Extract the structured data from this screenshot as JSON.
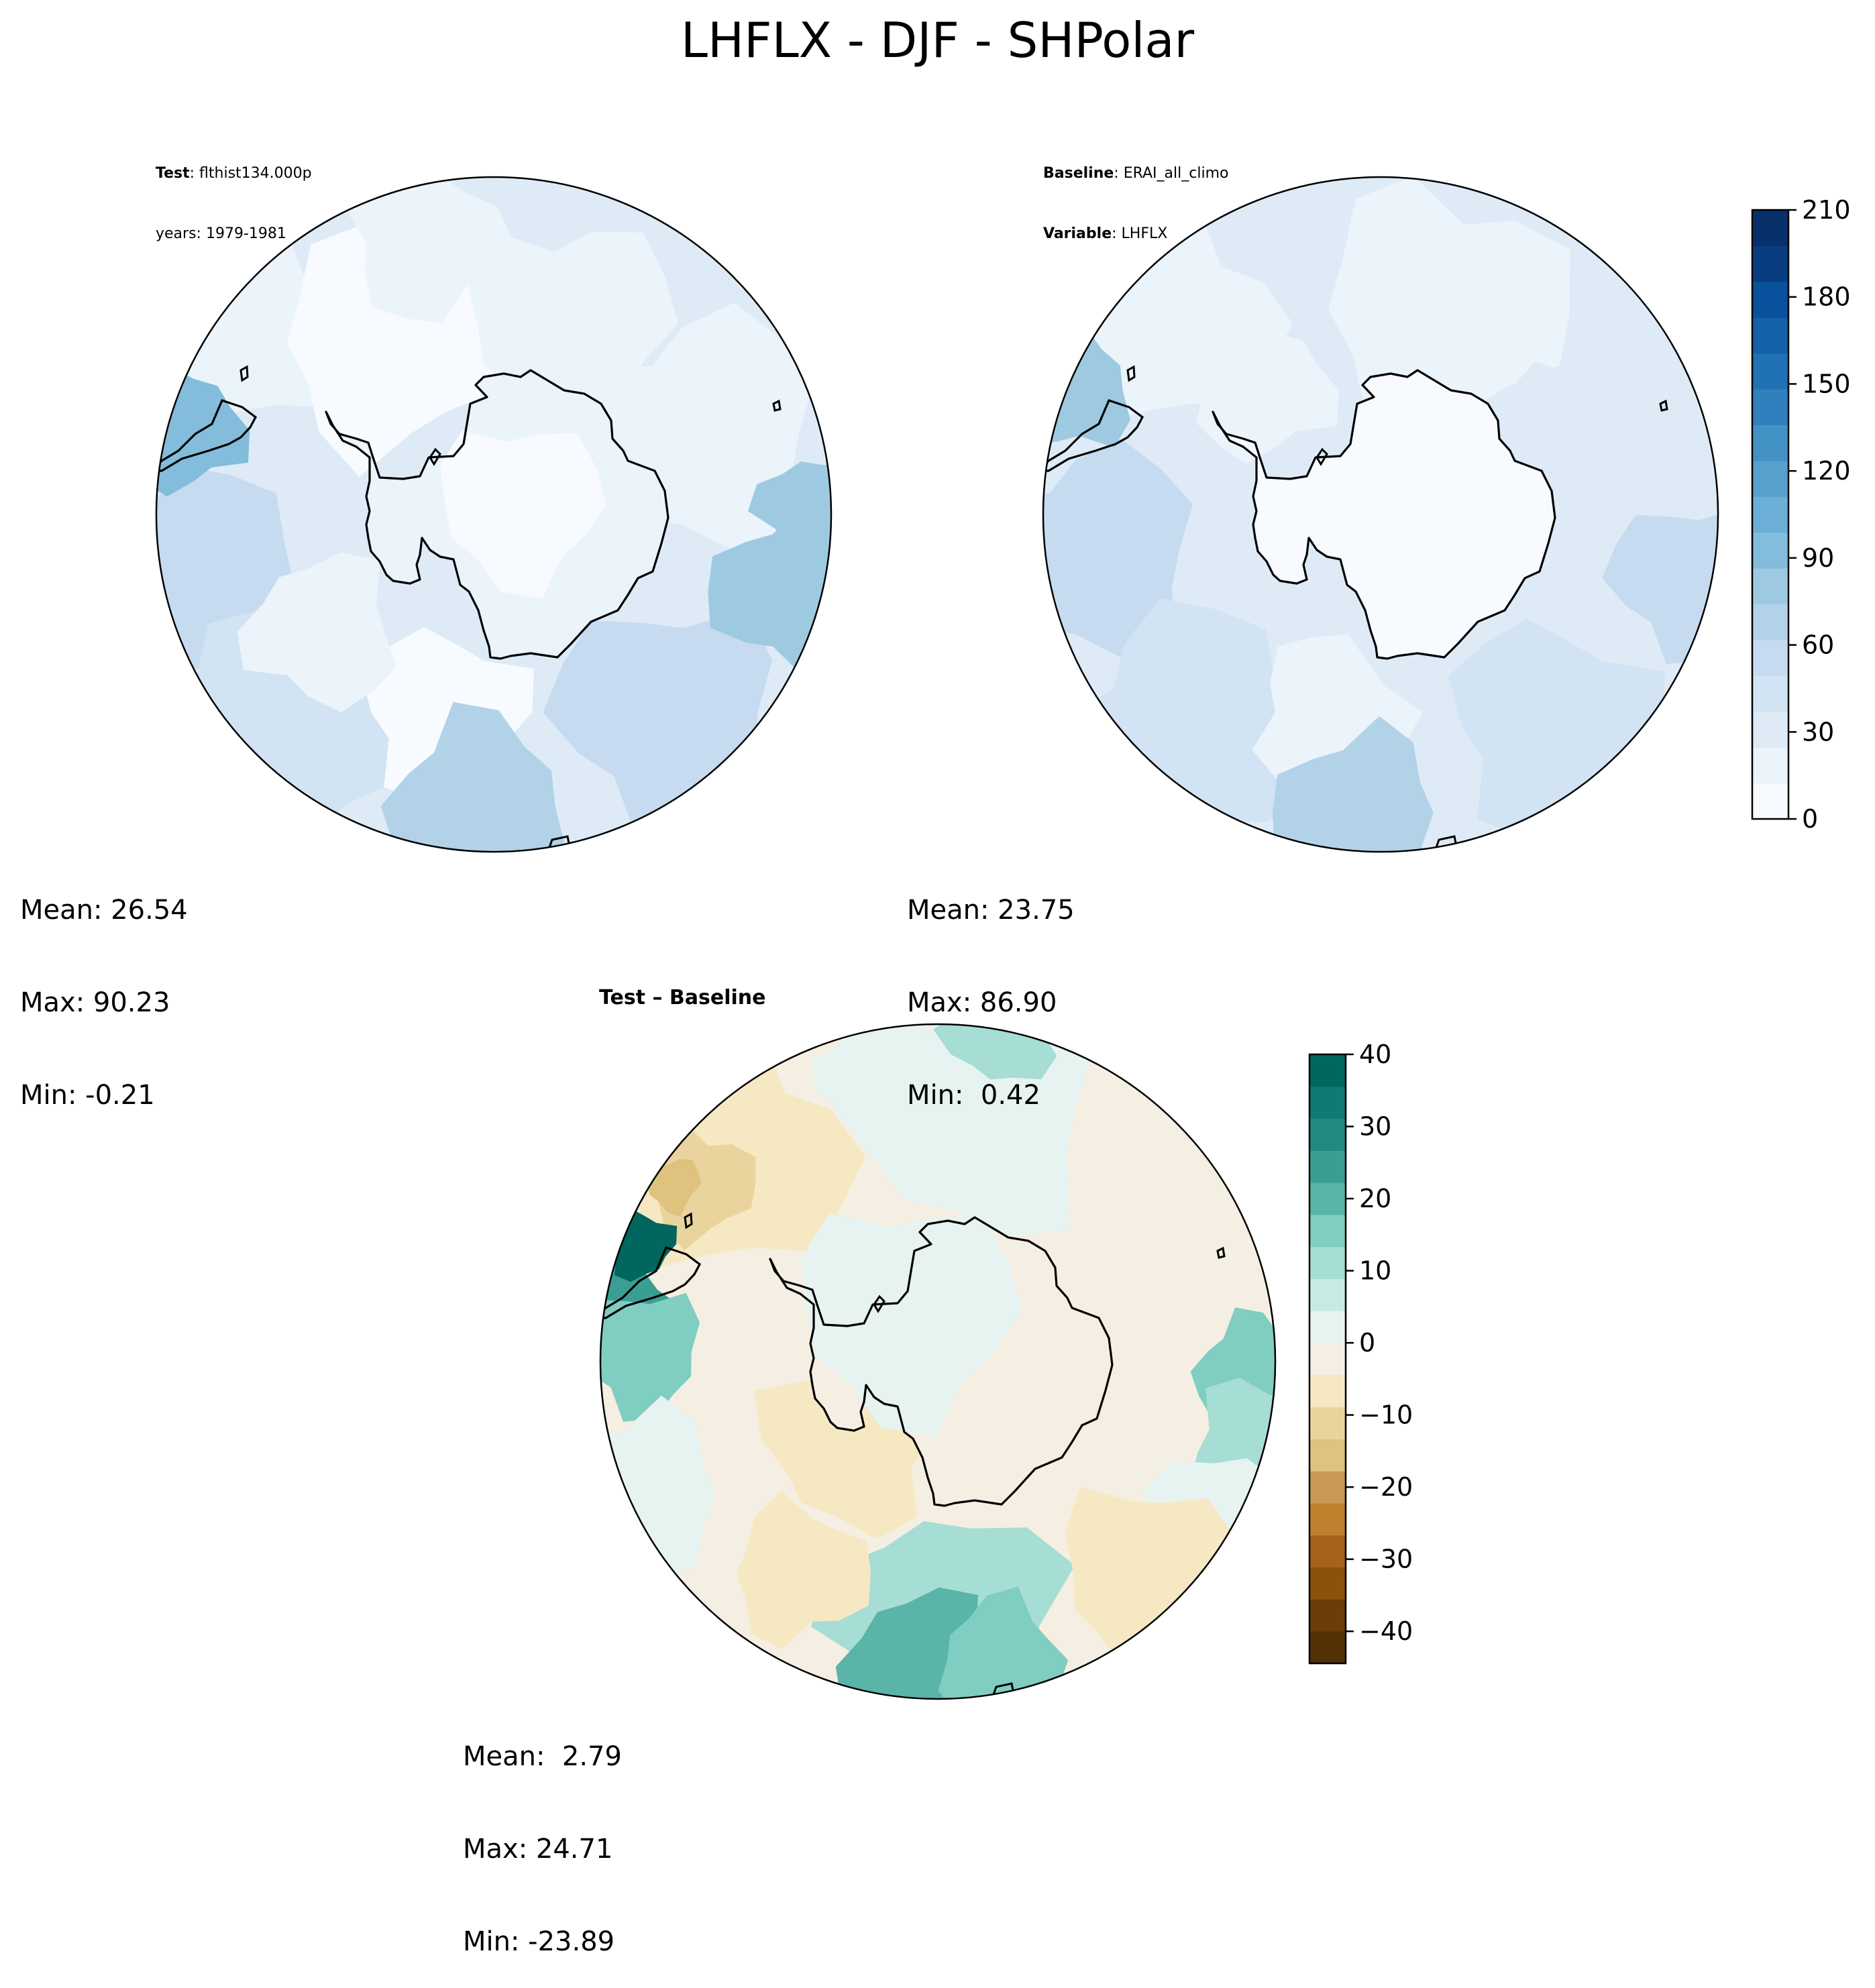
{
  "page": {
    "title": "LHFLX - DJF - SHPolar"
  },
  "panels": {
    "test": {
      "label_key": "Test",
      "label_sep": ": ",
      "case_name": "flthist134.000p",
      "years_line": "years: 1979-1981",
      "stats": {
        "mean": "Mean: 26.54",
        "max": "Max: 90.23",
        "min": "Min: -0.21"
      }
    },
    "baseline": {
      "label_key": "Baseline",
      "label_sep": ": ",
      "case_name": "ERAI_all_climo",
      "var_key": "Variable",
      "var_name": "LHFLX",
      "stats": {
        "mean": "Mean: 23.75",
        "max": "Max: 86.90",
        "min": "Min:  0.42"
      }
    },
    "diff": {
      "title": "Test – Baseline",
      "stats": {
        "mean": "Mean:  2.79",
        "max": "Max: 24.71",
        "min": "Min: -23.89"
      }
    }
  },
  "colorbars": {
    "main": {
      "ticks": [
        "0",
        "30",
        "60",
        "90",
        "120",
        "150",
        "180",
        "210"
      ],
      "colors": [
        "#f7fbff",
        "#ebf3fb",
        "#deebf7",
        "#d2e3f3",
        "#c6dbef",
        "#b2d2e8",
        "#9ecae1",
        "#84bcdb",
        "#6baed6",
        "#57a0ce",
        "#4292c6",
        "#3080bd",
        "#2171b5",
        "#1361a9",
        "#08519c",
        "#083e81",
        "#08306b"
      ]
    },
    "diff": {
      "ticks": [
        "40",
        "30",
        "20",
        "10",
        "0",
        "−10",
        "−20",
        "−30",
        "−40"
      ],
      "colors": [
        "#01665e",
        "#0f7a71",
        "#218b81",
        "#3a9e93",
        "#5ab4a8",
        "#80cdc1",
        "#a6ddd5",
        "#c7eae5",
        "#e6f3f1",
        "#f4efe2",
        "#f6e8c3",
        "#ead49e",
        "#dfc27d",
        "#c99a53",
        "#bf812d",
        "#a6611a",
        "#8c510a",
        "#6b3d07",
        "#543005"
      ]
    }
  }
}
